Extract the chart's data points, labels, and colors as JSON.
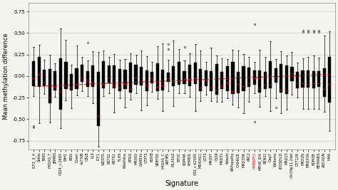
{
  "title": "",
  "xlabel": "Signature",
  "ylabel": "Mean methylation difference",
  "ylim": [
    -0.85,
    0.85
  ],
  "yticks": [
    -0.75,
    -0.5,
    -0.25,
    0.0,
    0.25,
    0.5,
    0.75
  ],
  "background_color": "#f5f5f0",
  "signatures": [
    "ICF2_3_4",
    "Sotos",
    "TBRS",
    "HYDAS_T",
    "JBMNS",
    "CSS4_c.2650",
    "WHS",
    "BISS",
    "Down",
    "AuTSIB",
    "C8LB",
    "LLS",
    "ICF1",
    "WDSTS",
    "RSTS2",
    "RSTS1",
    "FLHS",
    "Kleefstra",
    "ATRIX",
    "MR003",
    "GABEVs",
    "GTPTS",
    "KDVB",
    "SBBYS5",
    "HYDAS_C",
    "ARTMS",
    "MLASAZ",
    "EEOC",
    "KDM4B",
    "PHMDS",
    "CSS_c.62000",
    "MR40SCJ",
    "VCFS",
    "MR007",
    "CSS9",
    "MRD51",
    "Kabuki",
    "BAFopathy",
    "CHARGE",
    "MRD35R",
    "PRC2",
    "HPRNPFU",
    "MPH8_ID4",
    "RENS1",
    "Dep7",
    "Williams",
    "IDDSEILD",
    "MRD23",
    "Chr19p11.2del",
    "DYT128",
    "MRX2N",
    "MRDX3A",
    "KDM3B",
    "BEFANRS",
    "ADCADN",
    "HMA"
  ],
  "red_highlight": "HPRNPFU",
  "box_width": 0.6,
  "median_color": "#cc0000",
  "box_color": "black",
  "whisker_color": "black",
  "outlier_color": "black",
  "outlier_marker": "o",
  "outlier_size": 1.5,
  "grid_color": "#cccccc",
  "grid_linewidth": 0.5,
  "red_line_color": "#cc0000",
  "red_line_alpha": 0.8
}
